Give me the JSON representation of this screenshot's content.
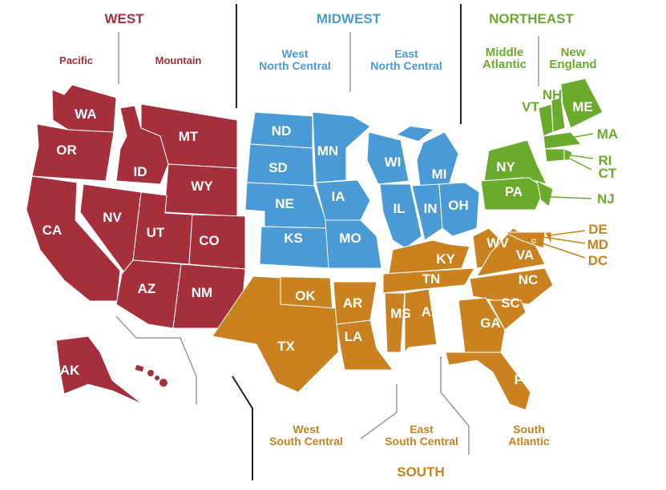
{
  "regions": [
    {
      "name": "WEST",
      "color": "#a52f3a",
      "divisions": [
        {
          "name": "Pacific",
          "states": [
            "WA",
            "OR",
            "CA",
            "AK",
            "HI"
          ]
        },
        {
          "name": "Mountain",
          "states": [
            "MT",
            "ID",
            "WY",
            "NV",
            "UT",
            "CO",
            "AZ",
            "NM"
          ]
        }
      ]
    },
    {
      "name": "MIDWEST",
      "color": "#4a9ad6",
      "divisions": [
        {
          "name": "West\nNorth Central",
          "states": [
            "ND",
            "SD",
            "NE",
            "KS",
            "MN",
            "IA",
            "MO"
          ]
        },
        {
          "name": "East\nNorth Central",
          "states": [
            "WI",
            "MI",
            "IL",
            "IN",
            "OH"
          ]
        }
      ]
    },
    {
      "name": "NORTHEAST",
      "color": "#6aab2e",
      "divisions": [
        {
          "name": "Middle\nAtlantic",
          "states": [
            "NY",
            "PA",
            "NJ"
          ]
        },
        {
          "name": "New\nEngland",
          "states": [
            "VT",
            "NH",
            "ME",
            "MA",
            "RI",
            "CT"
          ]
        }
      ]
    },
    {
      "name": "SOUTH",
      "color": "#c9821f",
      "divisions": [
        {
          "name": "West\nSouth Central",
          "states": [
            "OK",
            "TX",
            "AR",
            "LA"
          ]
        },
        {
          "name": "East\nSouth Central",
          "states": [
            "KY",
            "TN",
            "MS",
            "AL"
          ]
        },
        {
          "name": "South\nAtlantic",
          "states": [
            "WV",
            "VA",
            "NC",
            "SC",
            "GA",
            "FL",
            "DE",
            "MD",
            "DC"
          ]
        }
      ]
    }
  ]
}
